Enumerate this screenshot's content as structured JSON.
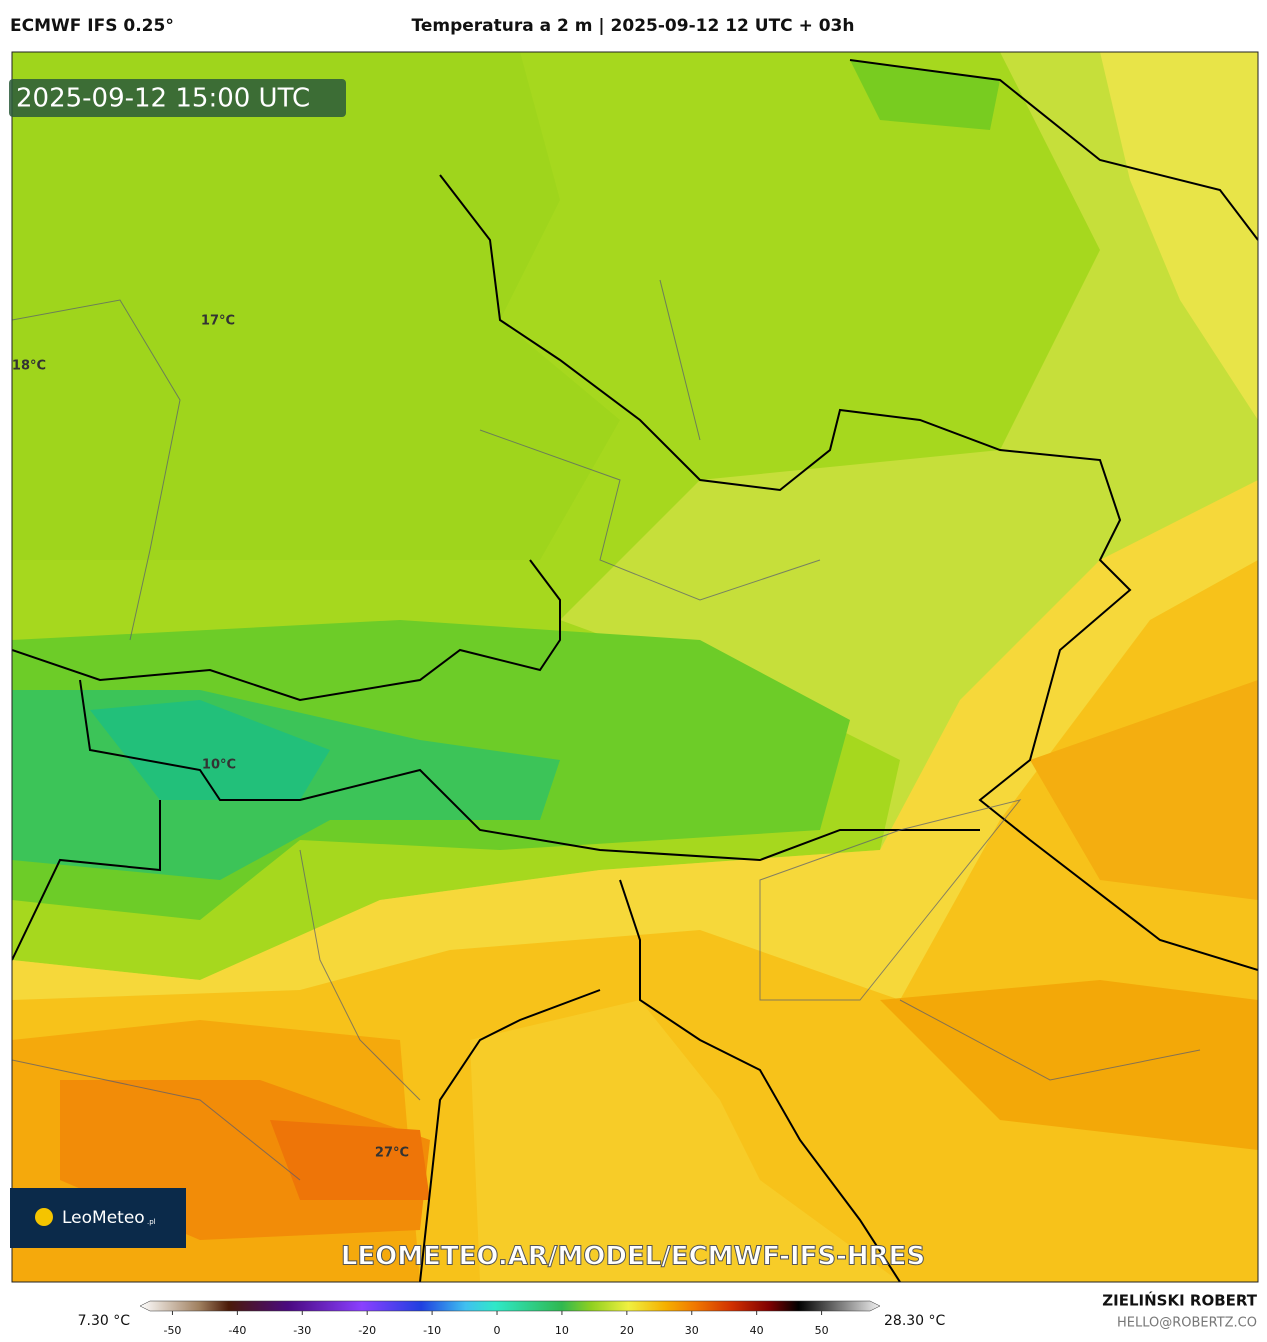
{
  "header": {
    "model": "ECMWF IFS 0.25°",
    "title": "Temperatura a 2 m | 2025-09-12 12 UTC + 03h"
  },
  "map": {
    "valid_time": "2025-09-12 15:00 UTC",
    "labels": [
      "17°C",
      "18°C",
      "10°C",
      "27°C"
    ],
    "logo": {
      "name": "LeoMeteo",
      "suffix": ".pl"
    },
    "watermark": "LEOMETEO.AR/MODEL/ECMWF-IFS-HRES"
  },
  "colorbar": {
    "min_label": "7.30 °C",
    "max_label": "28.30 °C",
    "range": [
      -55,
      59
    ],
    "ticks": [
      -50,
      -40,
      -30,
      -20,
      -10,
      0,
      10,
      20,
      30,
      40,
      50
    ]
  },
  "footer": {
    "author": "ZIELIŃSKI ROBERT",
    "contact": "HELLO@ROBERTZ.CO"
  }
}
